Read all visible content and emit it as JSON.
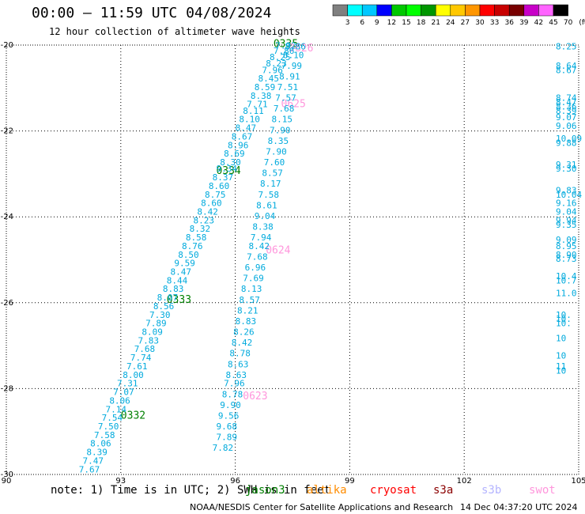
{
  "header": {
    "title": "00:00 – 11:59 UTC 04/08/2024",
    "subtitle": "12 hour collection of altimeter wave heights"
  },
  "legend": {
    "labels": [
      "3",
      "6",
      "9",
      "12",
      "15",
      "18",
      "21",
      "24",
      "27",
      "30",
      "33",
      "36",
      "39",
      "42",
      "45",
      "70",
      "(ft)"
    ],
    "colors": [
      "#808080",
      "#00ffff",
      "#00c8ff",
      "#0000ff",
      "#00c800",
      "#00ff00",
      "#009600",
      "#ffff00",
      "#ffc800",
      "#ff9600",
      "#ff0000",
      "#c80000",
      "#780000",
      "#c800c8",
      "#ff64ff",
      "#000000"
    ]
  },
  "footer": {
    "note": "note:  1) Time is in UTC; 2) SWH is in feet",
    "satellites": [
      {
        "name": "jason3",
        "color": "#008000"
      },
      {
        "name": "altika",
        "color": "#ff8c00"
      },
      {
        "name": "cryosat",
        "color": "#ff0000"
      },
      {
        "name": "s3a",
        "color": "#8b0000"
      },
      {
        "name": "s3b",
        "color": "#b4b4ff"
      },
      {
        "name": "swot",
        "color": "#ff96dc"
      }
    ],
    "credit": "NOAA/NESDIS Center for Satellite Applications and Research",
    "timestamp": "14 Dec 04:37:20 UTC 2024"
  },
  "chart_data": {
    "type": "scatter",
    "title": "00:00 – 11:59 UTC 04/08/2024",
    "subtitle": "12 hour collection of altimeter wave heights",
    "xlim": [
      90,
      105
    ],
    "ylim": [
      -30,
      -20
    ],
    "x_ticks": [
      "90",
      "93",
      "96",
      "99",
      "102",
      "105"
    ],
    "y_ticks": [
      "-20",
      "-22",
      "-24",
      "-26",
      "-28",
      "-30"
    ],
    "grid": true,
    "series": [
      {
        "name": "jason3",
        "color": "#008000",
        "points": [
          {
            "x": 93.0,
            "y": -28.7,
            "v": "0332"
          },
          {
            "x": 94.2,
            "y": -26.0,
            "v": "0333"
          },
          {
            "x": 95.5,
            "y": -23.0,
            "v": "0334"
          },
          {
            "x": 97.0,
            "y": -20.05,
            "v": "0335"
          }
        ]
      },
      {
        "name": "swot",
        "color": "#ff96dc",
        "points": [
          {
            "x": 97.4,
            "y": -20.15,
            "v": "0626"
          },
          {
            "x": 97.2,
            "y": -21.45,
            "v": "0625"
          },
          {
            "x": 96.8,
            "y": -24.85,
            "v": "0624"
          },
          {
            "x": 96.2,
            "y": -28.25,
            "v": "0623"
          }
        ]
      },
      {
        "name": "track_a",
        "color": "#00aadd",
        "points": [
          {
            "x": 91.9,
            "y": -29.95,
            "v": "7.67"
          },
          {
            "x": 92.0,
            "y": -29.75,
            "v": "7.47"
          },
          {
            "x": 92.1,
            "y": -29.55,
            "v": "8.39"
          },
          {
            "x": 92.2,
            "y": -29.35,
            "v": "8.06"
          },
          {
            "x": 92.3,
            "y": -29.15,
            "v": "7.58"
          },
          {
            "x": 92.4,
            "y": -28.95,
            "v": "7.50"
          },
          {
            "x": 92.5,
            "y": -28.75,
            "v": "7.54"
          },
          {
            "x": 92.6,
            "y": -28.55,
            "v": "7.14"
          },
          {
            "x": 92.7,
            "y": -28.35,
            "v": "8.06"
          },
          {
            "x": 92.8,
            "y": -28.15,
            "v": "7.07"
          },
          {
            "x": 92.9,
            "y": -27.95,
            "v": "7.31"
          },
          {
            "x": 93.05,
            "y": -27.75,
            "v": "8.00"
          },
          {
            "x": 93.15,
            "y": -27.55,
            "v": "7.61"
          },
          {
            "x": 93.25,
            "y": -27.35,
            "v": "7.74"
          },
          {
            "x": 93.35,
            "y": -27.15,
            "v": "7.68"
          },
          {
            "x": 93.45,
            "y": -26.95,
            "v": "7.83"
          },
          {
            "x": 93.55,
            "y": -26.75,
            "v": "8.09"
          },
          {
            "x": 93.65,
            "y": -26.55,
            "v": "7.89"
          },
          {
            "x": 93.75,
            "y": -26.35,
            "v": "7.30"
          },
          {
            "x": 93.85,
            "y": -26.15,
            "v": "8.56"
          },
          {
            "x": 93.95,
            "y": -25.95,
            "v": "8.07"
          },
          {
            "x": 94.1,
            "y": -25.75,
            "v": "8.83"
          },
          {
            "x": 94.2,
            "y": -25.55,
            "v": "8.44"
          },
          {
            "x": 94.3,
            "y": -25.35,
            "v": "8.47"
          },
          {
            "x": 94.4,
            "y": -25.15,
            "v": "9.59"
          },
          {
            "x": 94.5,
            "y": -24.95,
            "v": "8.50"
          },
          {
            "x": 94.6,
            "y": -24.75,
            "v": "8.76"
          },
          {
            "x": 94.7,
            "y": -24.55,
            "v": "8.58"
          },
          {
            "x": 94.8,
            "y": -24.35,
            "v": "8.32"
          },
          {
            "x": 94.9,
            "y": -24.15,
            "v": "8.23"
          },
          {
            "x": 95.0,
            "y": -23.95,
            "v": "8.42"
          },
          {
            "x": 95.1,
            "y": -23.75,
            "v": "8.60"
          },
          {
            "x": 95.2,
            "y": -23.55,
            "v": "8.75"
          },
          {
            "x": 95.3,
            "y": -23.35,
            "v": "8.60"
          },
          {
            "x": 95.4,
            "y": -23.15,
            "v": "8.37"
          },
          {
            "x": 95.5,
            "y": -22.95,
            "v": "9.34"
          },
          {
            "x": 95.6,
            "y": -22.8,
            "v": "8.30"
          },
          {
            "x": 95.7,
            "y": -22.6,
            "v": "8.69"
          },
          {
            "x": 95.8,
            "y": -22.4,
            "v": "8.96"
          },
          {
            "x": 95.9,
            "y": -22.2,
            "v": "8.67"
          },
          {
            "x": 96.0,
            "y": -22.0,
            "v": "8.47"
          },
          {
            "x": 96.1,
            "y": -21.8,
            "v": "8.10"
          },
          {
            "x": 96.2,
            "y": -21.6,
            "v": "8.11"
          },
          {
            "x": 96.3,
            "y": -21.45,
            "v": "7.71"
          },
          {
            "x": 96.4,
            "y": -21.25,
            "v": "8.38"
          },
          {
            "x": 96.5,
            "y": -21.05,
            "v": "8.59"
          },
          {
            "x": 96.6,
            "y": -20.85,
            "v": "8.45"
          },
          {
            "x": 96.7,
            "y": -20.65,
            "v": "7.96"
          },
          {
            "x": 96.8,
            "y": -20.5,
            "v": "8.23"
          },
          {
            "x": 96.9,
            "y": -20.35,
            "v": "8.25"
          },
          {
            "x": 97.0,
            "y": -20.2,
            "v": "7.86"
          },
          {
            "x": 97.05,
            "y": -20.08,
            "v": "7.92"
          }
        ]
      },
      {
        "name": "track_b",
        "color": "#00aadd",
        "points": [
          {
            "x": 95.4,
            "y": -29.45,
            "v": "7.82"
          },
          {
            "x": 95.5,
            "y": -29.2,
            "v": "7.89"
          },
          {
            "x": 95.5,
            "y": -28.95,
            "v": "9.68"
          },
          {
            "x": 95.55,
            "y": -28.7,
            "v": "9.56"
          },
          {
            "x": 95.6,
            "y": -28.45,
            "v": "9.90"
          },
          {
            "x": 95.65,
            "y": -28.2,
            "v": "8.78"
          },
          {
            "x": 95.7,
            "y": -27.95,
            "v": "7.96"
          },
          {
            "x": 95.75,
            "y": -27.75,
            "v": "8.63"
          },
          {
            "x": 95.8,
            "y": -27.5,
            "v": "8.63"
          },
          {
            "x": 95.85,
            "y": -27.25,
            "v": "8.78"
          },
          {
            "x": 95.9,
            "y": -27.0,
            "v": "8.42"
          },
          {
            "x": 95.95,
            "y": -26.75,
            "v": "8.26"
          },
          {
            "x": 96.0,
            "y": -26.5,
            "v": "8.83"
          },
          {
            "x": 96.05,
            "y": -26.25,
            "v": "8.21"
          },
          {
            "x": 96.1,
            "y": -26.0,
            "v": "8.57"
          },
          {
            "x": 96.15,
            "y": -25.75,
            "v": "8.13"
          },
          {
            "x": 96.2,
            "y": -25.5,
            "v": "7.69"
          },
          {
            "x": 96.25,
            "y": -25.25,
            "v": "6.96"
          },
          {
            "x": 96.3,
            "y": -25.0,
            "v": "7.68"
          },
          {
            "x": 96.35,
            "y": -24.75,
            "v": "8.42"
          },
          {
            "x": 96.4,
            "y": -24.55,
            "v": "7.94"
          },
          {
            "x": 96.45,
            "y": -24.3,
            "v": "8.38"
          },
          {
            "x": 96.5,
            "y": -24.05,
            "v": "9.04"
          },
          {
            "x": 96.55,
            "y": -23.8,
            "v": "8.61"
          },
          {
            "x": 96.6,
            "y": -23.55,
            "v": "7.58"
          },
          {
            "x": 96.65,
            "y": -23.3,
            "v": "8.17"
          },
          {
            "x": 96.7,
            "y": -23.05,
            "v": "8.57"
          },
          {
            "x": 96.75,
            "y": -22.8,
            "v": "7.60"
          },
          {
            "x": 96.8,
            "y": -22.55,
            "v": "7.90"
          },
          {
            "x": 96.85,
            "y": -22.3,
            "v": "8.35"
          },
          {
            "x": 96.9,
            "y": -22.05,
            "v": "7.90"
          },
          {
            "x": 96.95,
            "y": -21.8,
            "v": "8.15"
          },
          {
            "x": 97.0,
            "y": -21.55,
            "v": "7.68"
          },
          {
            "x": 97.05,
            "y": -21.3,
            "v": "7.57"
          },
          {
            "x": 97.1,
            "y": -21.05,
            "v": "7.51"
          },
          {
            "x": 97.15,
            "y": -20.8,
            "v": "8.91"
          },
          {
            "x": 97.2,
            "y": -20.55,
            "v": "7.99"
          },
          {
            "x": 97.25,
            "y": -20.3,
            "v": "8.10"
          },
          {
            "x": 97.3,
            "y": -20.1,
            "v": "8.86"
          }
        ]
      },
      {
        "name": "track_c",
        "color": "#00aadd",
        "points": [
          {
            "x": 104.4,
            "y": -20.1,
            "v": "8.25"
          },
          {
            "x": 104.4,
            "y": -20.55,
            "v": "8.64"
          },
          {
            "x": 104.4,
            "y": -20.65,
            "v": "8.67"
          },
          {
            "x": 104.4,
            "y": -21.3,
            "v": "8.74"
          },
          {
            "x": 104.4,
            "y": -21.4,
            "v": "8.47"
          },
          {
            "x": 104.4,
            "y": -21.5,
            "v": "8.36"
          },
          {
            "x": 104.4,
            "y": -21.6,
            "v": "8.39"
          },
          {
            "x": 104.4,
            "y": -21.75,
            "v": "9.07"
          },
          {
            "x": 104.4,
            "y": -21.95,
            "v": "9.06"
          },
          {
            "x": 104.4,
            "y": -22.25,
            "v": "10.09"
          },
          {
            "x": 104.4,
            "y": -22.35,
            "v": "9.88"
          },
          {
            "x": 104.4,
            "y": -22.85,
            "v": "9.31"
          },
          {
            "x": 104.4,
            "y": -22.95,
            "v": "9.30"
          },
          {
            "x": 104.4,
            "y": -23.45,
            "v": "9.83"
          },
          {
            "x": 104.4,
            "y": -23.55,
            "v": "10.04"
          },
          {
            "x": 104.4,
            "y": -23.75,
            "v": "9.16"
          },
          {
            "x": 104.4,
            "y": -23.95,
            "v": "9.04"
          },
          {
            "x": 104.4,
            "y": -24.15,
            "v": "9.94"
          },
          {
            "x": 104.4,
            "y": -24.25,
            "v": "9.35"
          },
          {
            "x": 104.4,
            "y": -24.6,
            "v": "9.09"
          },
          {
            "x": 104.4,
            "y": -24.75,
            "v": "8.95"
          },
          {
            "x": 104.4,
            "y": -24.95,
            "v": "8.90"
          },
          {
            "x": 104.4,
            "y": -25.05,
            "v": "8.73"
          },
          {
            "x": 104.4,
            "y": -25.45,
            "v": "10.4"
          },
          {
            "x": 104.4,
            "y": -25.55,
            "v": "10.7"
          },
          {
            "x": 104.4,
            "y": -25.85,
            "v": "11.0"
          },
          {
            "x": 104.4,
            "y": -26.35,
            "v": "10."
          },
          {
            "x": 104.4,
            "y": -26.45,
            "v": "10."
          },
          {
            "x": 104.4,
            "y": -26.55,
            "v": "10."
          },
          {
            "x": 104.4,
            "y": -26.9,
            "v": "10"
          },
          {
            "x": 104.4,
            "y": -27.3,
            "v": "10"
          },
          {
            "x": 104.4,
            "y": -27.55,
            "v": "11"
          },
          {
            "x": 104.4,
            "y": -27.65,
            "v": "10"
          }
        ]
      }
    ]
  }
}
